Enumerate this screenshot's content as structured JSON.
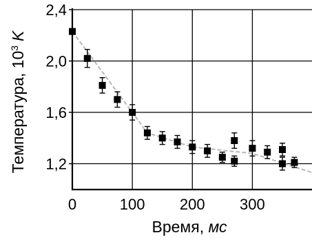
{
  "chart_data": {
    "type": "scatter",
    "xlabel": "Время, мс",
    "xlabel_prefix": "Время, ",
    "xlabel_unit": "мс",
    "ylabel": "Температура, 10³ K",
    "ylabel_prefix": "Температура, 10",
    "ylabel_exp": "3",
    "ylabel_unit": "K",
    "xlim": [
      0,
      400
    ],
    "ylim": [
      1.1,
      2.4
    ],
    "grid": true,
    "x_ticks": [
      0,
      100,
      200,
      300
    ],
    "x_tick_labels": [
      "0",
      "100",
      "200",
      "300"
    ],
    "y_ticks": [
      1.2,
      1.6,
      2.0,
      2.4
    ],
    "y_tick_labels": [
      "1,2",
      "1,6",
      "2,0",
      "2,4"
    ],
    "series": [
      {
        "marker": "square",
        "error_bars": true,
        "points": [
          {
            "x": 0,
            "y": 2.23,
            "err": 0
          },
          {
            "x": 25,
            "y": 2.02,
            "err": 0.07
          },
          {
            "x": 50,
            "y": 1.81,
            "err": 0.06
          },
          {
            "x": 75,
            "y": 1.7,
            "err": 0.06
          },
          {
            "x": 100,
            "y": 1.6,
            "err": 0.06
          },
          {
            "x": 125,
            "y": 1.44,
            "err": 0.05
          },
          {
            "x": 150,
            "y": 1.4,
            "err": 0.05
          },
          {
            "x": 175,
            "y": 1.37,
            "err": 0.05
          },
          {
            "x": 200,
            "y": 1.33,
            "err": 0.05
          },
          {
            "x": 225,
            "y": 1.3,
            "err": 0.05
          },
          {
            "x": 250,
            "y": 1.25,
            "err": 0.04
          },
          {
            "x": 270,
            "y": 1.38,
            "err": 0.06
          },
          {
            "x": 270,
            "y": 1.22,
            "err": 0.04
          },
          {
            "x": 300,
            "y": 1.32,
            "err": 0.06
          },
          {
            "x": 325,
            "y": 1.29,
            "err": 0.05
          },
          {
            "x": 350,
            "y": 1.31,
            "err": 0.05
          },
          {
            "x": 350,
            "y": 1.2,
            "err": 0.05
          },
          {
            "x": 370,
            "y": 1.21,
            "err": 0.04
          }
        ]
      }
    ],
    "trend_line": {
      "style": "dashed",
      "color": "#b8b8b8",
      "points": [
        {
          "x": 0,
          "y": 2.23
        },
        {
          "x": 100,
          "y": 1.6
        },
        {
          "x": 125,
          "y": 1.44
        },
        {
          "x": 200,
          "y": 1.33
        },
        {
          "x": 300,
          "y": 1.28
        },
        {
          "x": 400,
          "y": 1.13
        }
      ]
    },
    "colors": {
      "marker": "#000000",
      "grid": "#000000",
      "trend": "#b8b8b8"
    }
  }
}
